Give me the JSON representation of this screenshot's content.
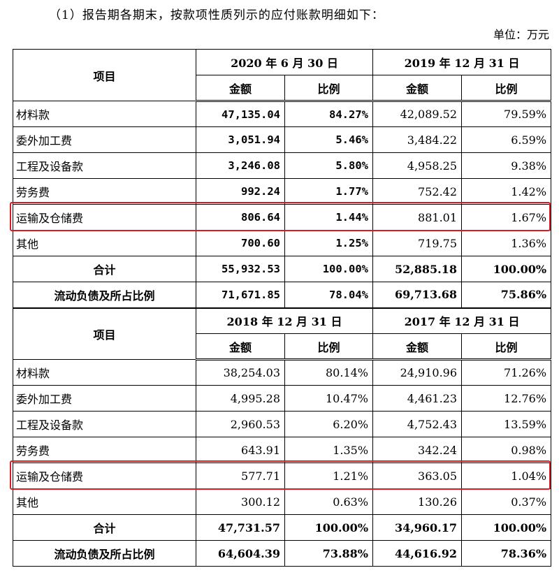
{
  "intro": "（1）报告期各期末，按款项性质列示的应付账款明细如下：",
  "unit": "单位：万元",
  "section1": {
    "item_header": "项目",
    "periods": [
      "2020 年 6 月 30 日",
      "2019 年 12 月 31 日"
    ],
    "sub_headers": [
      "金额",
      "比例",
      "金额",
      "比例"
    ],
    "rows": [
      {
        "label": "材料款",
        "cells": [
          "47,135.04",
          "84.27%",
          "42,089.52",
          "79.59%"
        ]
      },
      {
        "label": "委外加工费",
        "cells": [
          "3,051.94",
          "5.46%",
          "3,484.22",
          "6.59%"
        ]
      },
      {
        "label": "工程及设备款",
        "cells": [
          "3,246.08",
          "5.80%",
          "4,958.25",
          "9.38%"
        ]
      },
      {
        "label": "劳务费",
        "cells": [
          "992.24",
          "1.77%",
          "752.42",
          "1.42%"
        ]
      },
      {
        "label": "运输及仓储费",
        "cells": [
          "806.64",
          "1.44%",
          "881.01",
          "1.67%"
        ]
      },
      {
        "label": "其他",
        "cells": [
          "700.60",
          "1.25%",
          "719.75",
          "1.36%"
        ]
      },
      {
        "label": "合计",
        "cells": [
          "55,932.53",
          "100.00%",
          "52,885.18",
          "100.00%"
        ]
      },
      {
        "label": "流动负债及所占比例",
        "cells": [
          "71,671.85",
          "78.04%",
          "69,713.68",
          "75.86%"
        ]
      }
    ]
  },
  "section2": {
    "item_header": "项目",
    "periods": [
      "2018 年 12 月 31 日",
      "2017 年 12 月 31 日"
    ],
    "sub_headers": [
      "金额",
      "比例",
      "金额",
      "比例"
    ],
    "rows": [
      {
        "label": "材料款",
        "cells": [
          "38,254.03",
          "80.14%",
          "24,910.96",
          "71.26%"
        ]
      },
      {
        "label": "委外加工费",
        "cells": [
          "4,995.28",
          "10.47%",
          "4,461.23",
          "12.76%"
        ]
      },
      {
        "label": "工程及设备款",
        "cells": [
          "2,960.53",
          "6.20%",
          "4,752.43",
          "13.59%"
        ]
      },
      {
        "label": "劳务费",
        "cells": [
          "643.91",
          "1.35%",
          "342.24",
          "0.98%"
        ]
      },
      {
        "label": "运输及仓储费",
        "cells": [
          "577.71",
          "1.21%",
          "363.05",
          "1.04%"
        ]
      },
      {
        "label": "其他",
        "cells": [
          "300.12",
          "0.63%",
          "130.26",
          "0.37%"
        ]
      },
      {
        "label": "合计",
        "cells": [
          "47,731.57",
          "100.00%",
          "34,960.17",
          "100.00%"
        ]
      },
      {
        "label": "流动负债及所占比例",
        "cells": [
          "64,604.39",
          "73.88%",
          "44,616.92",
          "78.36%"
        ]
      }
    ]
  },
  "highlight_color": "#d81c25"
}
